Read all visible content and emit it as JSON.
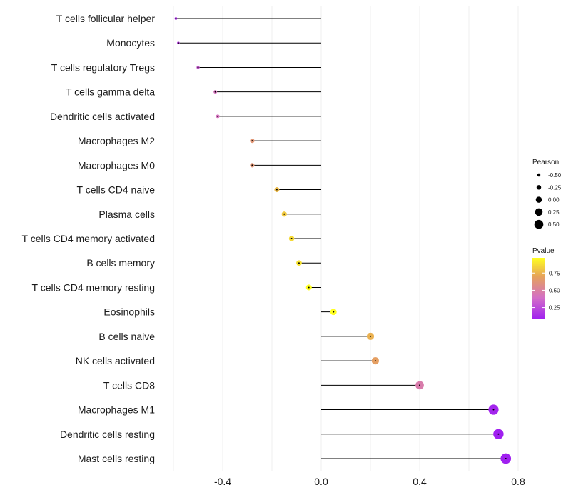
{
  "chart_data": {
    "type": "lollipop",
    "title": "",
    "xlabel": "",
    "ylabel": "",
    "xlim": [
      -0.6,
      0.8
    ],
    "x_ticks": [
      -0.4,
      0.0,
      0.4,
      0.8
    ],
    "x_tick_labels": [
      "-0.4",
      "0.0",
      "0.4",
      "0.8"
    ],
    "grid": true,
    "stem_origin": 0,
    "categories": [
      "T cells follicular helper",
      "Monocytes",
      "T cells regulatory  Tregs",
      "T cells gamma delta",
      "Dendritic cells activated",
      "Macrophages M2",
      "Macrophages M0",
      "T cells CD4 naive",
      "Plasma cells",
      "T cells CD4 memory activated",
      "B cells memory",
      "T cells CD4 memory resting",
      "Eosinophils",
      "B cells naive",
      "NK cells activated",
      "T cells CD8",
      "Macrophages M1",
      "Dendritic cells resting",
      "Mast cells resting"
    ],
    "values": [
      -0.59,
      -0.58,
      -0.5,
      -0.43,
      -0.42,
      -0.28,
      -0.28,
      -0.18,
      -0.15,
      -0.12,
      -0.09,
      -0.05,
      0.05,
      0.2,
      0.22,
      0.4,
      0.7,
      0.72,
      0.75
    ],
    "pvalues": [
      0.15,
      0.2,
      0.3,
      0.4,
      0.4,
      0.6,
      0.6,
      0.75,
      0.8,
      0.85,
      0.88,
      0.97,
      0.97,
      0.72,
      0.65,
      0.45,
      0.1,
      0.08,
      0.07
    ],
    "legend_size": {
      "title": "Pearson",
      "placement": "right",
      "values": [
        -0.5,
        -0.25,
        0.0,
        0.25,
        0.5
      ],
      "labels": [
        "-0.50",
        "-0.25",
        "0.00",
        "0.25",
        "0.50"
      ]
    },
    "legend_color": {
      "title": "Pvalue",
      "placement": "right",
      "range": [
        0.08,
        0.97
      ],
      "ticks": [
        0.25,
        0.5,
        0.75
      ],
      "tick_labels": [
        "0.25",
        "0.50",
        "0.75"
      ],
      "colors": [
        "#a020f0",
        "#d36fc6",
        "#e6a35a",
        "#ffff20"
      ]
    },
    "colors": {
      "stem": "#000000",
      "grid": "#ebebeb",
      "point_dot": "#000000"
    }
  }
}
